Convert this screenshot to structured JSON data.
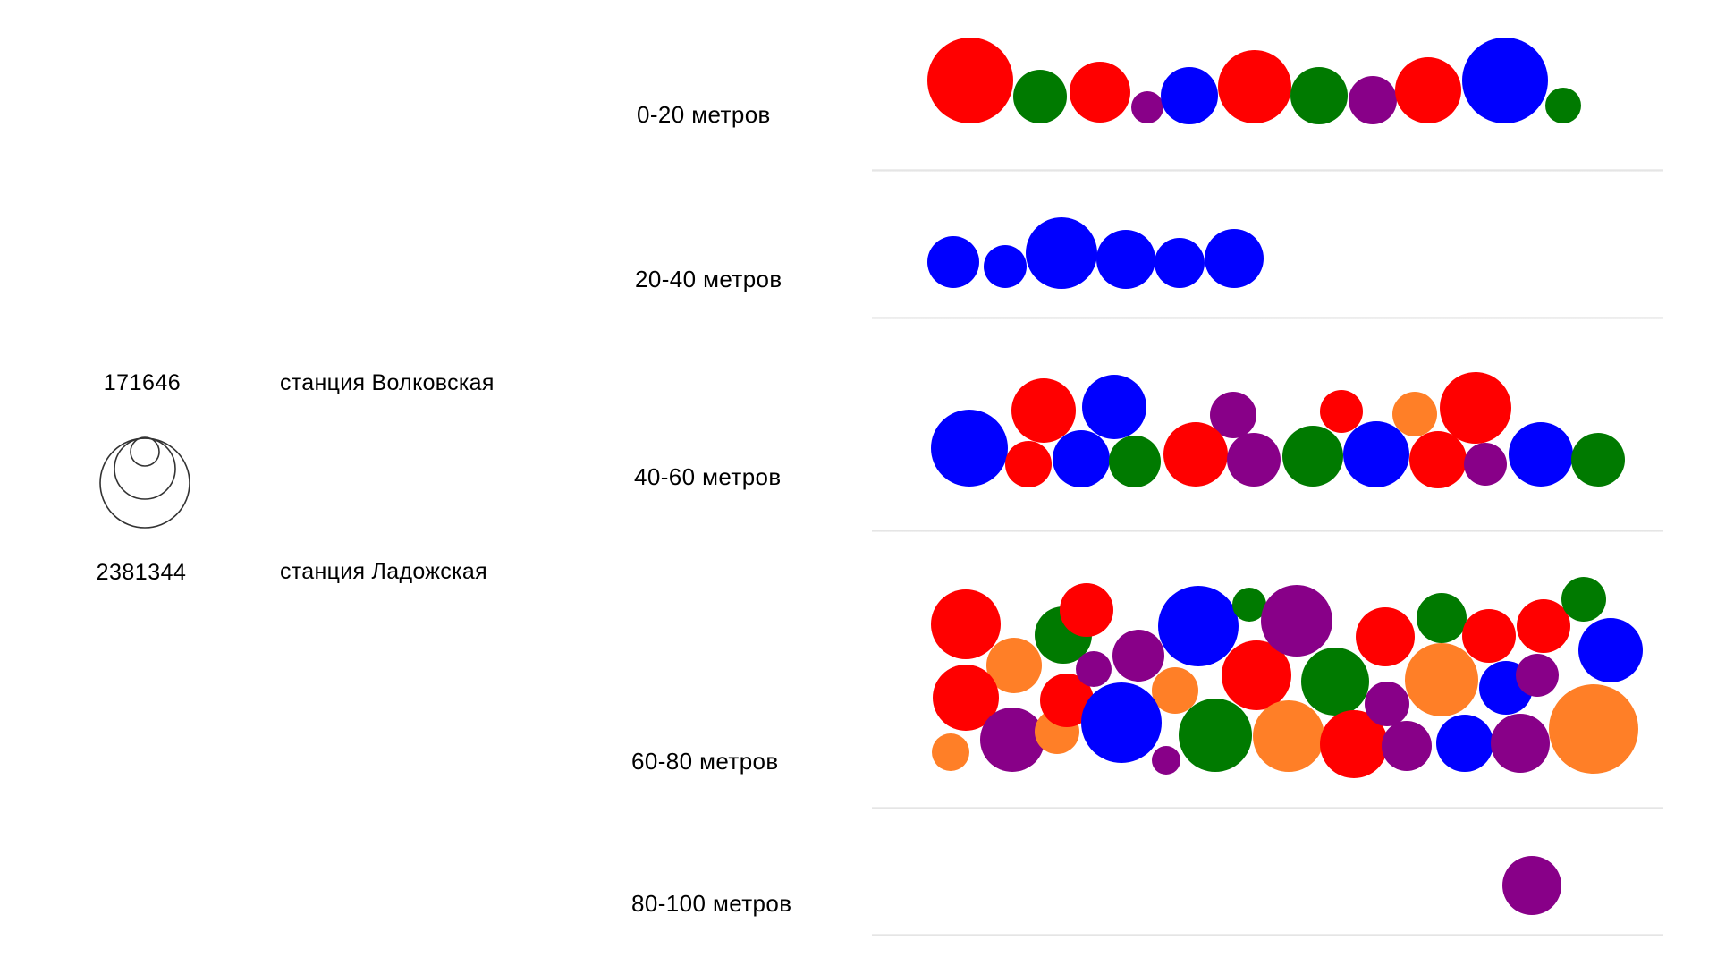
{
  "legend": {
    "max_value": "171646",
    "max_station": "станция Волковская",
    "min_value": "2381344",
    "min_station": "станция Ладожская"
  },
  "colors": {
    "red": "#ff0000",
    "green": "#007a00",
    "purple": "#880088",
    "blue": "#0000ff",
    "orange": "#ff7f27"
  },
  "chart_data": {
    "type": "packed-bubble",
    "bands": [
      {
        "label": "0-20 метров",
        "bubbles": [
          {
            "color": "red",
            "r": 48
          },
          {
            "color": "green",
            "r": 30
          },
          {
            "color": "red",
            "r": 34
          },
          {
            "color": "purple",
            "r": 18
          },
          {
            "color": "blue",
            "r": 32
          },
          {
            "color": "red",
            "r": 41
          },
          {
            "color": "green",
            "r": 32
          },
          {
            "color": "purple",
            "r": 27
          },
          {
            "color": "red",
            "r": 37
          },
          {
            "color": "blue",
            "r": 48
          },
          {
            "color": "green",
            "r": 20
          }
        ]
      },
      {
        "label": "20-40 метров",
        "bubbles": [
          {
            "color": "blue",
            "r": 29
          },
          {
            "color": "blue",
            "r": 24
          },
          {
            "color": "blue",
            "r": 40
          },
          {
            "color": "blue",
            "r": 33
          },
          {
            "color": "blue",
            "r": 28
          },
          {
            "color": "blue",
            "r": 33
          }
        ]
      },
      {
        "label": "40-60 метров",
        "bubbles": [
          {
            "color": "blue",
            "r": 43
          },
          {
            "color": "red",
            "r": 36
          },
          {
            "color": "blue",
            "r": 36
          },
          {
            "color": "red",
            "r": 26
          },
          {
            "color": "blue",
            "r": 32
          },
          {
            "color": "green",
            "r": 29
          },
          {
            "color": "purple",
            "r": 26
          },
          {
            "color": "red",
            "r": 36
          },
          {
            "color": "purple",
            "r": 30
          },
          {
            "color": "red",
            "r": 24
          },
          {
            "color": "green",
            "r": 34
          },
          {
            "color": "orange",
            "r": 25
          },
          {
            "color": "blue",
            "r": 37
          },
          {
            "color": "red",
            "r": 40
          },
          {
            "color": "red",
            "r": 32
          },
          {
            "color": "purple",
            "r": 24
          },
          {
            "color": "blue",
            "r": 36
          },
          {
            "color": "green",
            "r": 30
          }
        ]
      },
      {
        "label": "60-80 метров",
        "bubbles": [
          {
            "color": "red",
            "r": 39
          },
          {
            "color": "orange",
            "r": 31
          },
          {
            "color": "red",
            "r": 37
          },
          {
            "color": "orange",
            "r": 21
          },
          {
            "color": "purple",
            "r": 36
          },
          {
            "color": "green",
            "r": 32
          },
          {
            "color": "red",
            "r": 30
          },
          {
            "color": "orange",
            "r": 25
          },
          {
            "color": "red",
            "r": 30
          },
          {
            "color": "purple",
            "r": 20
          },
          {
            "color": "purple",
            "r": 29
          },
          {
            "color": "blue",
            "r": 45
          },
          {
            "color": "orange",
            "r": 26
          },
          {
            "color": "purple",
            "r": 16
          },
          {
            "color": "blue",
            "r": 45
          },
          {
            "color": "green",
            "r": 19
          },
          {
            "color": "red",
            "r": 39
          },
          {
            "color": "green",
            "r": 41
          },
          {
            "color": "purple",
            "r": 40
          },
          {
            "color": "green",
            "r": 38
          },
          {
            "color": "orange",
            "r": 40
          },
          {
            "color": "red",
            "r": 38
          },
          {
            "color": "purple",
            "r": 25
          },
          {
            "color": "red",
            "r": 33
          },
          {
            "color": "green",
            "r": 28
          },
          {
            "color": "orange",
            "r": 41
          },
          {
            "color": "purple",
            "r": 28
          },
          {
            "color": "blue",
            "r": 30
          },
          {
            "color": "red",
            "r": 30
          },
          {
            "color": "blue",
            "r": 32
          },
          {
            "color": "red",
            "r": 30
          },
          {
            "color": "purple",
            "r": 24
          },
          {
            "color": "purple",
            "r": 33
          },
          {
            "color": "green",
            "r": 25
          },
          {
            "color": "blue",
            "r": 36
          },
          {
            "color": "orange",
            "r": 50
          }
        ]
      },
      {
        "label": "80-100 метров",
        "bubbles": [
          {
            "color": "purple",
            "r": 33
          }
        ]
      }
    ]
  }
}
